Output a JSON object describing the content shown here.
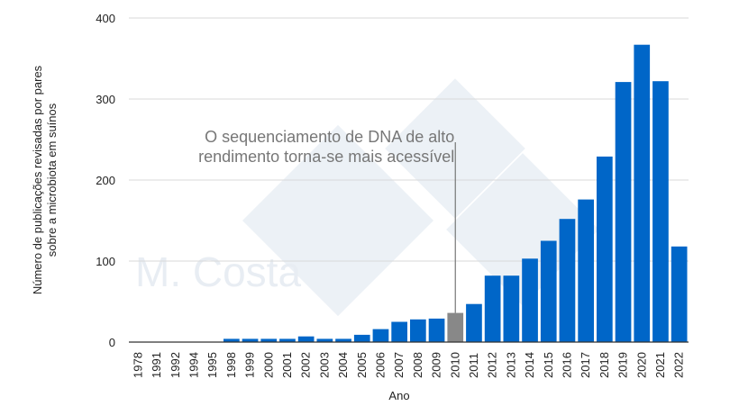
{
  "chart_data": {
    "type": "bar",
    "title": "",
    "xlabel": "Ano",
    "ylabel": "Número de publicações revisadas por pares sobre a microbiota em suínos",
    "ylabel_lines": [
      "Número de publicações revisadas por pares",
      "sobre a microbiota em suínos"
    ],
    "ylim": [
      0,
      400
    ],
    "yticks": [
      0,
      100,
      200,
      300,
      400
    ],
    "grid": true,
    "categories": [
      "1978",
      "1991",
      "1992",
      "1994",
      "1995",
      "1998",
      "1999",
      "2000",
      "2001",
      "2002",
      "2003",
      "2004",
      "2005",
      "2006",
      "2007",
      "2008",
      "2009",
      "2010",
      "2011",
      "2012",
      "2013",
      "2014",
      "2015",
      "2016",
      "2017",
      "2018",
      "2019",
      "2020",
      "2021",
      "2022"
    ],
    "values": [
      0,
      0,
      0,
      0,
      0,
      4,
      4,
      4,
      4,
      7,
      4,
      4,
      9,
      16,
      25,
      28,
      29,
      36,
      47,
      82,
      82,
      103,
      125,
      152,
      176,
      229,
      321,
      367,
      322,
      118
    ],
    "highlight_category": "2010",
    "colors": {
      "bar": "#0066c8",
      "highlight": "#888888",
      "grid": "#d9d9d9",
      "annotation": "#777777"
    },
    "annotation": {
      "lines": [
        "O sequenciamento de DNA de alto",
        "rendimento torna-se mais acessível"
      ],
      "category": "2010"
    }
  },
  "watermark": {
    "text": "M. Costa",
    "logo": "333"
  }
}
